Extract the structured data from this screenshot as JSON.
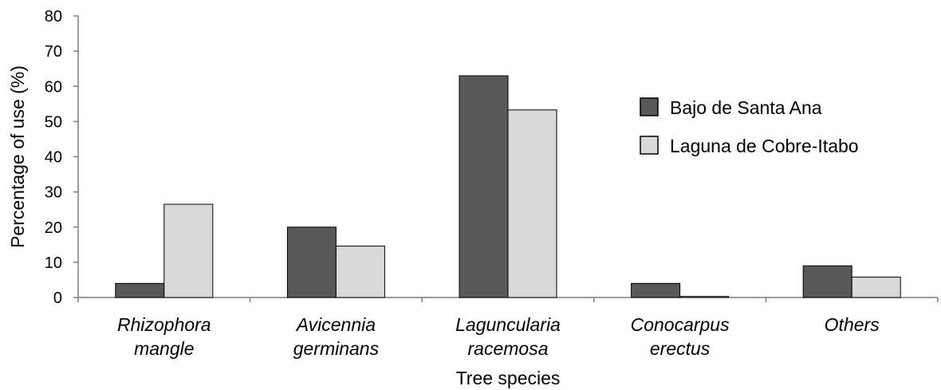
{
  "chart_data": {
    "type": "bar",
    "categories": [
      [
        "Rhizophora",
        "mangle"
      ],
      [
        "Avicennia",
        "germinans"
      ],
      [
        "Laguncularia",
        "racemosa"
      ],
      [
        "Conocarpus",
        "erectus"
      ],
      [
        "Others"
      ]
    ],
    "series": [
      {
        "name": "Bajo de Santa Ana",
        "color": "#595959",
        "values": [
          4,
          20,
          63,
          4,
          9
        ]
      },
      {
        "name": "Laguna de Cobre-Itabo",
        "color": "#d9d9d9",
        "values": [
          26.5,
          14.6,
          53.3,
          0.3,
          5.8
        ]
      }
    ],
    "title": "",
    "xlabel": "Tree species",
    "ylabel": "Percentage of use (%)",
    "ylim": [
      0,
      80
    ],
    "yticks": [
      0,
      10,
      20,
      30,
      40,
      50,
      60,
      70,
      80
    ],
    "grid": false,
    "legend_position": "right"
  }
}
